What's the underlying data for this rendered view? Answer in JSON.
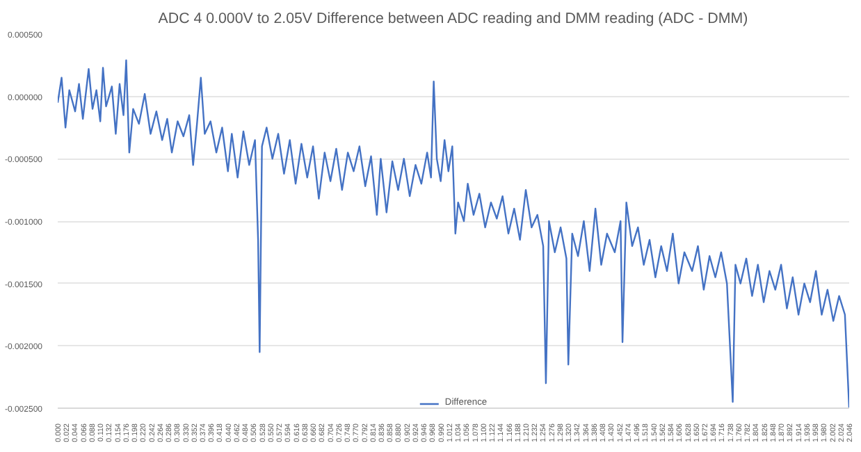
{
  "chart_data": {
    "type": "line",
    "title": "ADC 4 0.000V to 2.05V Difference between ADC reading and DMM reading (ADC - DMM)",
    "x": [
      0.0,
      0.01,
      0.02,
      0.03,
      0.045,
      0.055,
      0.065,
      0.08,
      0.09,
      0.1,
      0.11,
      0.117,
      0.125,
      0.14,
      0.15,
      0.16,
      0.17,
      0.177,
      0.185,
      0.195,
      0.21,
      0.225,
      0.24,
      0.255,
      0.27,
      0.283,
      0.295,
      0.31,
      0.325,
      0.34,
      0.35,
      0.36,
      0.37,
      0.38,
      0.395,
      0.41,
      0.425,
      0.44,
      0.45,
      0.465,
      0.48,
      0.495,
      0.51,
      0.518,
      0.522,
      0.528,
      0.54,
      0.555,
      0.57,
      0.585,
      0.6,
      0.615,
      0.63,
      0.645,
      0.66,
      0.675,
      0.69,
      0.705,
      0.72,
      0.735,
      0.75,
      0.765,
      0.78,
      0.795,
      0.81,
      0.825,
      0.835,
      0.85,
      0.865,
      0.88,
      0.895,
      0.91,
      0.925,
      0.94,
      0.955,
      0.965,
      0.972,
      0.98,
      0.99,
      1.0,
      1.01,
      1.02,
      1.028,
      1.035,
      1.05,
      1.06,
      1.075,
      1.09,
      1.105,
      1.12,
      1.135,
      1.15,
      1.165,
      1.18,
      1.195,
      1.21,
      1.225,
      1.24,
      1.255,
      1.262,
      1.27,
      1.285,
      1.3,
      1.315,
      1.32,
      1.33,
      1.345,
      1.36,
      1.375,
      1.39,
      1.405,
      1.42,
      1.44,
      1.455,
      1.46,
      1.47,
      1.485,
      1.5,
      1.515,
      1.53,
      1.545,
      1.56,
      1.575,
      1.59,
      1.605,
      1.62,
      1.64,
      1.655,
      1.67,
      1.685,
      1.7,
      1.715,
      1.73,
      1.745,
      1.752,
      1.765,
      1.78,
      1.795,
      1.81,
      1.825,
      1.84,
      1.855,
      1.87,
      1.885,
      1.9,
      1.915,
      1.93,
      1.945,
      1.96,
      1.975,
      1.99,
      2.005,
      2.02,
      2.035,
      2.046
    ],
    "series": [
      {
        "name": "Difference",
        "color": "#4472c4",
        "values": [
          -5e-05,
          0.00015,
          -0.00025,
          5e-05,
          -0.00012,
          0.0001,
          -0.00018,
          0.00022,
          -0.0001,
          5e-05,
          -0.0002,
          0.00023,
          -8e-05,
          8e-05,
          -0.0003,
          0.0001,
          -0.00015,
          0.00029,
          -0.00045,
          -0.0001,
          -0.00022,
          2e-05,
          -0.0003,
          -0.00012,
          -0.00035,
          -0.00018,
          -0.00045,
          -0.0002,
          -0.00032,
          -0.00015,
          -0.00055,
          -0.00022,
          0.00015,
          -0.0003,
          -0.0002,
          -0.00045,
          -0.00025,
          -0.0006,
          -0.0003,
          -0.00065,
          -0.00028,
          -0.00055,
          -0.00035,
          -0.00115,
          -0.00205,
          -0.0004,
          -0.00025,
          -0.0005,
          -0.0003,
          -0.00062,
          -0.00035,
          -0.0007,
          -0.00038,
          -0.00065,
          -0.0004,
          -0.00082,
          -0.00045,
          -0.00068,
          -0.00042,
          -0.00075,
          -0.00045,
          -0.0006,
          -0.0004,
          -0.00072,
          -0.00048,
          -0.00095,
          -0.0005,
          -0.00093,
          -0.00052,
          -0.00075,
          -0.0005,
          -0.0008,
          -0.00055,
          -0.0007,
          -0.00045,
          -0.00065,
          0.00012,
          -0.0005,
          -0.00068,
          -0.00035,
          -0.0006,
          -0.0004,
          -0.0011,
          -0.00085,
          -0.001,
          -0.0007,
          -0.00095,
          -0.00078,
          -0.00105,
          -0.00085,
          -0.00098,
          -0.0008,
          -0.0011,
          -0.0009,
          -0.00115,
          -0.00075,
          -0.00105,
          -0.00095,
          -0.0012,
          -0.0023,
          -0.001,
          -0.00125,
          -0.00105,
          -0.0013,
          -0.00215,
          -0.0011,
          -0.00128,
          -0.001,
          -0.0014,
          -0.0009,
          -0.00135,
          -0.0011,
          -0.00125,
          -0.001,
          -0.00197,
          -0.00085,
          -0.0012,
          -0.00105,
          -0.00135,
          -0.00115,
          -0.00145,
          -0.0012,
          -0.0014,
          -0.0011,
          -0.0015,
          -0.00125,
          -0.0014,
          -0.0012,
          -0.00155,
          -0.00128,
          -0.00145,
          -0.00125,
          -0.0015,
          -0.00245,
          -0.00135,
          -0.0015,
          -0.0013,
          -0.0016,
          -0.00135,
          -0.00165,
          -0.0014,
          -0.00155,
          -0.00135,
          -0.0017,
          -0.00145,
          -0.00175,
          -0.0015,
          -0.00165,
          -0.0014,
          -0.00175,
          -0.00155,
          -0.0018,
          -0.0016,
          -0.00175,
          -0.0025
        ]
      }
    ],
    "xlim": [
      0,
      2.046
    ],
    "xticks": [
      {
        "value": 0.0,
        "label": "0.000"
      },
      {
        "value": 0.022,
        "label": "0.022"
      },
      {
        "value": 0.044,
        "label": "0.044"
      },
      {
        "value": 0.066,
        "label": "0.066"
      },
      {
        "value": 0.088,
        "label": "0.088"
      },
      {
        "value": 0.11,
        "label": "0.110"
      },
      {
        "value": 0.132,
        "label": "0.132"
      },
      {
        "value": 0.154,
        "label": "0.154"
      },
      {
        "value": 0.176,
        "label": "0.176"
      },
      {
        "value": 0.198,
        "label": "0.198"
      },
      {
        "value": 0.22,
        "label": "0.220"
      },
      {
        "value": 0.242,
        "label": "0.242"
      },
      {
        "value": 0.264,
        "label": "0.264"
      },
      {
        "value": 0.286,
        "label": "0.286"
      },
      {
        "value": 0.308,
        "label": "0.308"
      },
      {
        "value": 0.33,
        "label": "0.330"
      },
      {
        "value": 0.352,
        "label": "0.352"
      },
      {
        "value": 0.374,
        "label": "0.374"
      },
      {
        "value": 0.396,
        "label": "0.396"
      },
      {
        "value": 0.418,
        "label": "0.418"
      },
      {
        "value": 0.44,
        "label": "0.440"
      },
      {
        "value": 0.462,
        "label": "0.462"
      },
      {
        "value": 0.484,
        "label": "0.484"
      },
      {
        "value": 0.506,
        "label": "0.506"
      },
      {
        "value": 0.528,
        "label": "0.528"
      },
      {
        "value": 0.55,
        "label": "0.550"
      },
      {
        "value": 0.572,
        "label": "0.572"
      },
      {
        "value": 0.594,
        "label": "0.594"
      },
      {
        "value": 0.616,
        "label": "0.616"
      },
      {
        "value": 0.638,
        "label": "0.638"
      },
      {
        "value": 0.66,
        "label": "0.660"
      },
      {
        "value": 0.682,
        "label": "0.682"
      },
      {
        "value": 0.704,
        "label": "0.704"
      },
      {
        "value": 0.726,
        "label": "0.726"
      },
      {
        "value": 0.748,
        "label": "0.748"
      },
      {
        "value": 0.77,
        "label": "0.770"
      },
      {
        "value": 0.792,
        "label": "0.792"
      },
      {
        "value": 0.814,
        "label": "0.814"
      },
      {
        "value": 0.836,
        "label": "0.836"
      },
      {
        "value": 0.858,
        "label": "0.858"
      },
      {
        "value": 0.88,
        "label": "0.880"
      },
      {
        "value": 0.902,
        "label": "0.902"
      },
      {
        "value": 0.924,
        "label": "0.924"
      },
      {
        "value": 0.946,
        "label": "0.946"
      },
      {
        "value": 0.968,
        "label": "0.968"
      },
      {
        "value": 0.99,
        "label": "0.990"
      },
      {
        "value": 1.012,
        "label": "1.012"
      },
      {
        "value": 1.034,
        "label": "1.034"
      },
      {
        "value": 1.056,
        "label": "1.056"
      },
      {
        "value": 1.078,
        "label": "1.078"
      },
      {
        "value": 1.1,
        "label": "1.100"
      },
      {
        "value": 1.122,
        "label": "1.122"
      },
      {
        "value": 1.144,
        "label": "1.144"
      },
      {
        "value": 1.166,
        "label": "1.166"
      },
      {
        "value": 1.188,
        "label": "1.188"
      },
      {
        "value": 1.21,
        "label": "1.210"
      },
      {
        "value": 1.232,
        "label": "1.232"
      },
      {
        "value": 1.254,
        "label": "1.254"
      },
      {
        "value": 1.276,
        "label": "1.276"
      },
      {
        "value": 1.298,
        "label": "1.298"
      },
      {
        "value": 1.32,
        "label": "1.320"
      },
      {
        "value": 1.342,
        "label": "1.342"
      },
      {
        "value": 1.364,
        "label": "1.364"
      },
      {
        "value": 1.386,
        "label": "1.386"
      },
      {
        "value": 1.408,
        "label": "1.408"
      },
      {
        "value": 1.43,
        "label": "1.430"
      },
      {
        "value": 1.452,
        "label": "1.452"
      },
      {
        "value": 1.474,
        "label": "1.474"
      },
      {
        "value": 1.496,
        "label": "1.496"
      },
      {
        "value": 1.518,
        "label": "1.518"
      },
      {
        "value": 1.54,
        "label": "1.540"
      },
      {
        "value": 1.562,
        "label": "1.562"
      },
      {
        "value": 1.584,
        "label": "1.584"
      },
      {
        "value": 1.606,
        "label": "1.606"
      },
      {
        "value": 1.628,
        "label": "1.628"
      },
      {
        "value": 1.65,
        "label": "1.650"
      },
      {
        "value": 1.672,
        "label": "1.672"
      },
      {
        "value": 1.694,
        "label": "1.694"
      },
      {
        "value": 1.716,
        "label": "1.716"
      },
      {
        "value": 1.738,
        "label": "1.738"
      },
      {
        "value": 1.76,
        "label": "1.760"
      },
      {
        "value": 1.782,
        "label": "1.782"
      },
      {
        "value": 1.804,
        "label": "1.804"
      },
      {
        "value": 1.826,
        "label": "1.826"
      },
      {
        "value": 1.848,
        "label": "1.848"
      },
      {
        "value": 1.87,
        "label": "1.870"
      },
      {
        "value": 1.892,
        "label": "1.892"
      },
      {
        "value": 1.914,
        "label": "1.914"
      },
      {
        "value": 1.936,
        "label": "1.936"
      },
      {
        "value": 1.958,
        "label": "1.958"
      },
      {
        "value": 1.98,
        "label": "1.980"
      },
      {
        "value": 2.002,
        "label": "2.002"
      },
      {
        "value": 2.024,
        "label": "2.024"
      },
      {
        "value": 2.046,
        "label": "2.046"
      }
    ],
    "ylim": [
      -0.0025,
      0.0005
    ],
    "yticks": [
      {
        "value": 0.0005,
        "label": "0.000500"
      },
      {
        "value": 0,
        "label": "0.000000"
      },
      {
        "value": -0.0005,
        "label": "-0.000500"
      },
      {
        "value": -0.001,
        "label": "-0.001000"
      },
      {
        "value": -0.0015,
        "label": "-0.001500"
      },
      {
        "value": -0.002,
        "label": "-0.002000"
      },
      {
        "value": -0.0025,
        "label": "-0.002500"
      }
    ],
    "grid": "y",
    "legend": "bottom",
    "marker": "none",
    "line_style": "solid"
  }
}
